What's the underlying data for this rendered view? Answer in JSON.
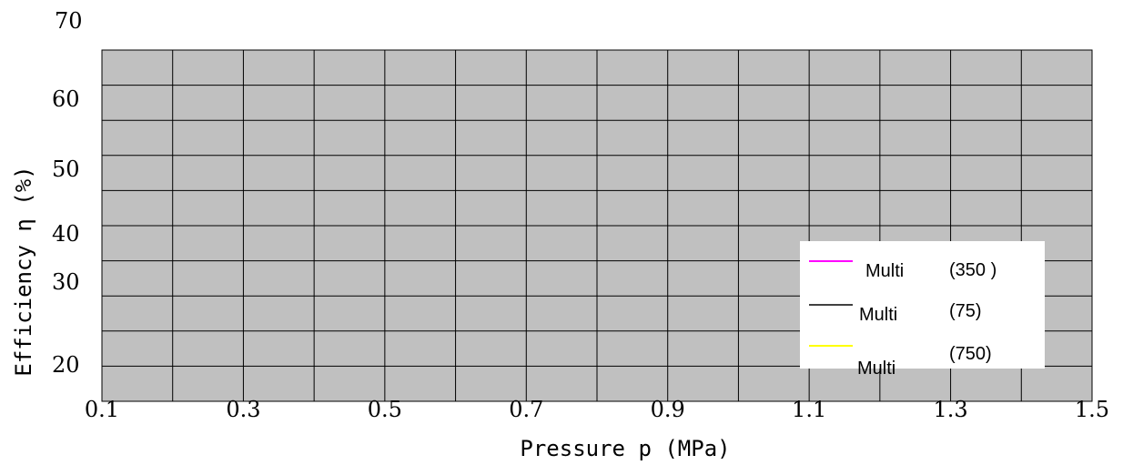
{
  "chart_data": {
    "type": "line",
    "title": "",
    "xlabel": "Pressure p (MPa)",
    "ylabel": "Efficiency η (%)",
    "x_tick_labels": [
      "0.1",
      "0.3",
      "0.5",
      "0.7",
      "0.9",
      "1.1",
      "1.3",
      "1.5"
    ],
    "x_ticks": [
      0.1,
      0.3,
      0.5,
      0.7,
      0.9,
      1.1,
      1.3,
      1.5
    ],
    "y_tick_labels": [
      "70",
      "60",
      "50",
      "40",
      "30",
      "20"
    ],
    "xlim": [
      0.1,
      1.5
    ],
    "grid": true,
    "plot_background": "#c0c0c0",
    "legend_position": "bottom-right",
    "series": [
      {
        "name": "Multi",
        "label_suffix": "(350 )",
        "color": "#ff00ff",
        "values": []
      },
      {
        "name": "Multi",
        "label_suffix": "(75)",
        "color": "#000000",
        "values": []
      },
      {
        "name": "Multi",
        "label_suffix": "(750)",
        "color": "#ffff00",
        "values": []
      }
    ]
  }
}
